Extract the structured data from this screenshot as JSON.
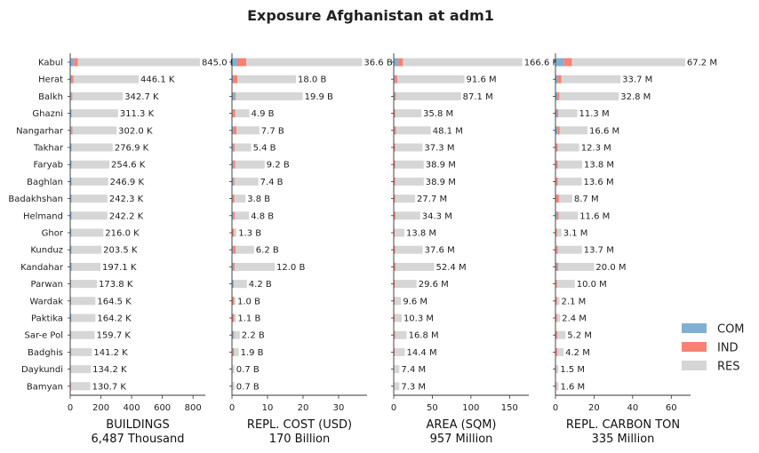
{
  "title": "Exposure Afghanistan at adm1",
  "colors": {
    "COM": "#7fb0d2",
    "IND": "#f98172",
    "RES": "#d6d6d6",
    "axis": "#333333"
  },
  "legend": [
    {
      "key": "COM",
      "label": "COM"
    },
    {
      "key": "IND",
      "label": "IND"
    },
    {
      "key": "RES",
      "label": "RES"
    }
  ],
  "chart_data": [
    {
      "type": "bar",
      "orientation": "horizontal",
      "stacked": true,
      "xlabel": "BUILDINGS",
      "total_label": "6,487 Thousand",
      "xlim": [
        0,
        880
      ],
      "xticks": [
        0,
        200,
        400,
        600,
        800
      ],
      "categories": [
        "Kabul",
        "Herat",
        "Balkh",
        "Ghazni",
        "Nangarhar",
        "Takhar",
        "Faryab",
        "Baghlan",
        "Badakhshan",
        "Helmand",
        "Ghor",
        "Kunduz",
        "Kandahar",
        "Parwan",
        "Wardak",
        "Paktika",
        "Sar-e Pol",
        "Badghis",
        "Daykundi",
        "Bamyan"
      ],
      "series": [
        {
          "name": "COM",
          "values": [
            25,
            12,
            10,
            6,
            10,
            6,
            6,
            6,
            6,
            6,
            6,
            6,
            8,
            5,
            5,
            6,
            5,
            4,
            3,
            3
          ]
        },
        {
          "name": "IND",
          "values": [
            25,
            10,
            4,
            4,
            5,
            4,
            4,
            4,
            4,
            4,
            2,
            3,
            3,
            2,
            2,
            2,
            2,
            2,
            1,
            2
          ]
        },
        {
          "name": "RES",
          "values": [
            795.0,
            424.1,
            328.7,
            301.3,
            287.0,
            266.9,
            244.6,
            236.9,
            232.3,
            232.2,
            208.0,
            194.5,
            186.1,
            166.8,
            157.5,
            156.2,
            152.7,
            135.2,
            130.2,
            125.7
          ]
        }
      ],
      "labels": [
        "845.0 K",
        "446.1 K",
        "342.7 K",
        "311.3 K",
        "302.0 K",
        "276.9 K",
        "254.6 K",
        "246.9 K",
        "242.3 K",
        "242.2 K",
        "216.0 K",
        "203.5 K",
        "197.1 K",
        "173.8 K",
        "164.5 K",
        "164.2 K",
        "159.7 K",
        "141.2 K",
        "134.2 K",
        "130.7 K"
      ]
    },
    {
      "type": "bar",
      "orientation": "horizontal",
      "stacked": true,
      "xlabel": "REPL. COST (USD)",
      "total_label": "170 Billion",
      "xlim": [
        0,
        38
      ],
      "xticks": [
        0,
        10,
        20,
        30
      ],
      "categories": [
        "Kabul",
        "Herat",
        "Balkh",
        "Ghazni",
        "Nangarhar",
        "Takhar",
        "Faryab",
        "Baghlan",
        "Badakhshan",
        "Helmand",
        "Ghor",
        "Kunduz",
        "Kandahar",
        "Parwan",
        "Wardak",
        "Paktika",
        "Sar-e Pol",
        "Badghis",
        "Daykundi",
        "Bamyan"
      ],
      "series": [
        {
          "name": "COM",
          "values": [
            1.5,
            0.5,
            0.8,
            0.2,
            0.5,
            0.3,
            0.3,
            0.3,
            0.2,
            0.4,
            0.1,
            0.3,
            0.3,
            0.3,
            0.1,
            0.1,
            0.4,
            0.2,
            0.05,
            0.05
          ]
        },
        {
          "name": "IND",
          "values": [
            2.5,
            1.0,
            0.3,
            0.7,
            0.8,
            0.5,
            0.6,
            0.4,
            0.5,
            0.4,
            0.5,
            0.7,
            0.5,
            0.2,
            0.5,
            0.5,
            0.2,
            0.4,
            0.1,
            0.1
          ]
        },
        {
          "name": "RES",
          "values": [
            32.6,
            16.5,
            18.8,
            4.0,
            6.4,
            4.6,
            8.3,
            6.7,
            3.1,
            4.0,
            0.7,
            5.2,
            11.2,
            3.7,
            0.4,
            0.5,
            1.6,
            1.3,
            0.55,
            0.55
          ]
        }
      ],
      "labels": [
        "36.6 B",
        "18.0 B",
        "19.9 B",
        "4.9 B",
        "7.7 B",
        "5.4 B",
        "9.2 B",
        "7.4 B",
        "3.8 B",
        "4.8 B",
        "1.3 B",
        "6.2 B",
        "12.0 B",
        "4.2 B",
        "1.0 B",
        "1.1 B",
        "2.2 B",
        "1.9 B",
        "0.7 B",
        "0.7 B"
      ]
    },
    {
      "type": "bar",
      "orientation": "horizontal",
      "stacked": true,
      "xlabel": "AREA (SQM)",
      "total_label": "957 Million",
      "xlim": [
        0,
        175
      ],
      "xticks": [
        0,
        50,
        100,
        150
      ],
      "categories": [
        "Kabul",
        "Herat",
        "Balkh",
        "Ghazni",
        "Nangarhar",
        "Takhar",
        "Faryab",
        "Baghlan",
        "Badakhshan",
        "Helmand",
        "Ghor",
        "Kunduz",
        "Kandahar",
        "Parwan",
        "Wardak",
        "Paktika",
        "Sar-e Pol",
        "Badghis",
        "Daykundi",
        "Bamyan"
      ],
      "series": [
        {
          "name": "COM",
          "values": [
            6,
            1.5,
            1.5,
            0.5,
            1.0,
            0.5,
            0.5,
            0.5,
            0.5,
            0.8,
            0.3,
            0.5,
            0.8,
            0.5,
            0.3,
            0.3,
            0.8,
            0.3,
            0.2,
            0.2
          ]
        },
        {
          "name": "IND",
          "values": [
            6,
            3,
            1.5,
            1.5,
            2.0,
            1.5,
            1.5,
            1.5,
            1.5,
            1.5,
            1.0,
            1.5,
            1.5,
            1.0,
            1.0,
            1.0,
            1.0,
            1.0,
            0.5,
            0.5
          ]
        },
        {
          "name": "RES",
          "values": [
            154.6,
            87.1,
            84.1,
            33.8,
            45.1,
            35.3,
            36.9,
            36.9,
            25.7,
            32.0,
            12.5,
            35.6,
            50.1,
            28.1,
            8.3,
            9.0,
            15.0,
            13.1,
            6.7,
            6.6
          ]
        }
      ],
      "labels": [
        "166.6 M",
        "91.6 M",
        "87.1 M",
        "35.8 M",
        "48.1 M",
        "37.3 M",
        "38.9 M",
        "38.9 M",
        "27.7 M",
        "34.3 M",
        "13.8 M",
        "37.6 M",
        "52.4 M",
        "29.6 M",
        "9.6 M",
        "10.3 M",
        "16.8 M",
        "14.4 M",
        "7.4 M",
        "7.3 M"
      ]
    },
    {
      "type": "bar",
      "orientation": "horizontal",
      "stacked": true,
      "xlabel": "REPL. CARBON TON",
      "total_label": "335 Million",
      "xlim": [
        0,
        70
      ],
      "xticks": [
        0,
        20,
        40,
        60
      ],
      "categories": [
        "Kabul",
        "Herat",
        "Balkh",
        "Ghazni",
        "Nangarhar",
        "Takhar",
        "Faryab",
        "Baghlan",
        "Badakhshan",
        "Helmand",
        "Ghor",
        "Kunduz",
        "Kandahar",
        "Parwan",
        "Wardak",
        "Paktika",
        "Sar-e Pol",
        "Badghis",
        "Daykundi",
        "Bamyan"
      ],
      "series": [
        {
          "name": "COM",
          "values": [
            4.5,
            1.0,
            1.0,
            0.7,
            1.0,
            0.4,
            0.4,
            0.4,
            0.4,
            0.8,
            0.2,
            0.4,
            0.7,
            0.3,
            0.2,
            0.2,
            0.5,
            0.3,
            0.1,
            0.1
          ]
        },
        {
          "name": "IND",
          "values": [
            4.0,
            2.0,
            1.0,
            0.8,
            1.2,
            0.8,
            0.8,
            0.8,
            1.4,
            0.8,
            0.5,
            0.8,
            0.8,
            0.5,
            0.5,
            0.6,
            0.5,
            0.6,
            0.3,
            0.3
          ]
        },
        {
          "name": "RES",
          "values": [
            58.7,
            30.7,
            30.8,
            9.8,
            14.4,
            11.1,
            12.6,
            12.4,
            6.9,
            10.0,
            2.4,
            12.5,
            18.5,
            9.2,
            1.4,
            1.6,
            4.2,
            3.3,
            1.1,
            1.2
          ]
        }
      ],
      "labels": [
        "67.2 M",
        "33.7 M",
        "32.8 M",
        "11.3 M",
        "16.6 M",
        "12.3 M",
        "13.8 M",
        "13.6 M",
        "8.7 M",
        "11.6 M",
        "3.1 M",
        "13.7 M",
        "20.0 M",
        "10.0 M",
        "2.1 M",
        "2.4 M",
        "5.2 M",
        "4.2 M",
        "1.5 M",
        "1.6 M"
      ]
    }
  ]
}
